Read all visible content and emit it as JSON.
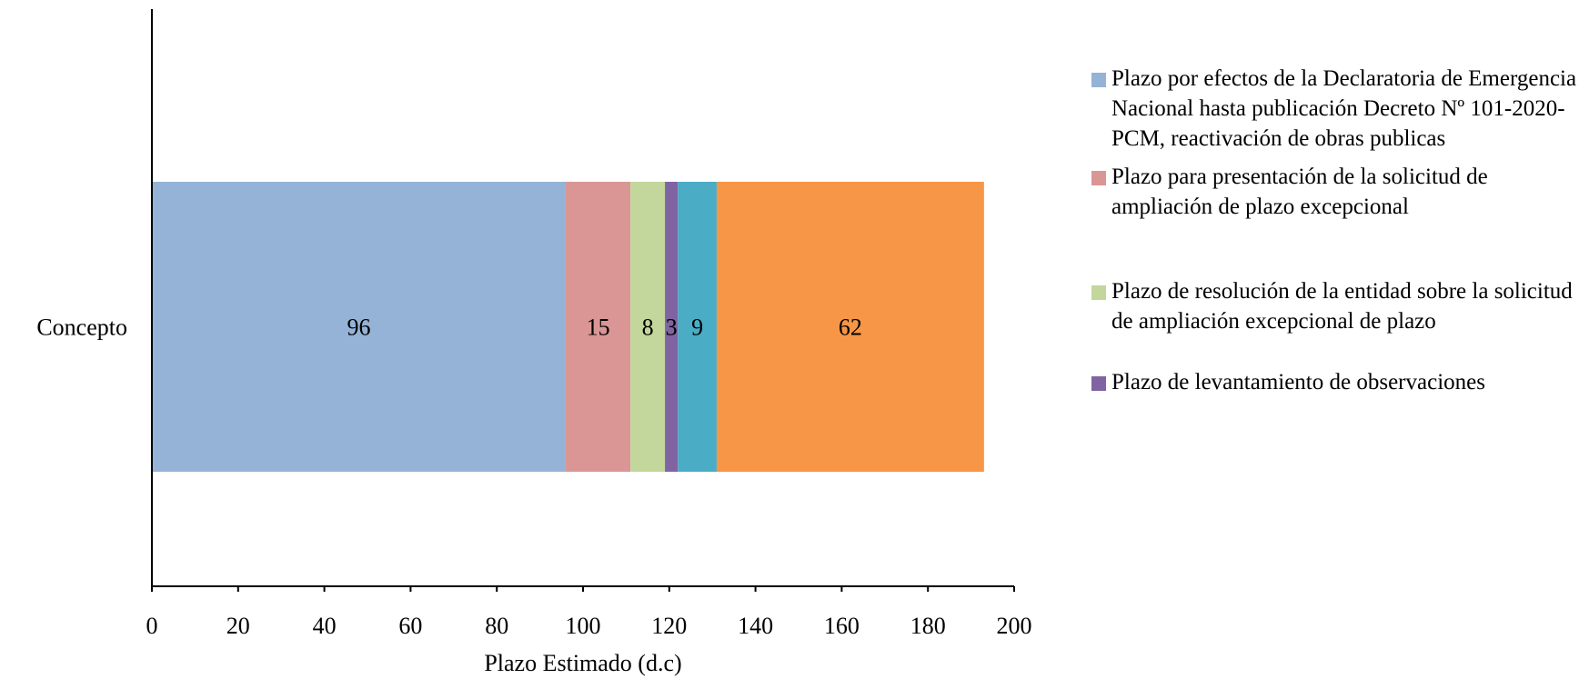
{
  "chart_data": {
    "type": "bar",
    "orientation": "horizontal",
    "stacked": true,
    "categories": [
      "Concepto"
    ],
    "series": [
      {
        "name": "Plazo por efectos de la Declaratoria de Emergencia Nacional hasta publicación Decreto Nº 101-2020-PCM, reactivación de obras publicas",
        "values": [
          96
        ],
        "color": "#95b3d7"
      },
      {
        "name": "Plazo para presentación de la solicitud de ampliación de plazo excepcional",
        "values": [
          15
        ],
        "color": "#d99694"
      },
      {
        "name": "Plazo de resolución de la entidad sobre la solicitud de ampliación excepcional de plazo",
        "values": [
          8
        ],
        "color": "#c3d69b"
      },
      {
        "name": "Plazo de levantamiento de observaciones",
        "values": [
          3
        ],
        "color": "#8064a2"
      },
      {
        "name": "",
        "values": [
          9
        ],
        "color": "#4bacc6"
      },
      {
        "name": "",
        "values": [
          62
        ],
        "color": "#f79646"
      }
    ],
    "xlabel": "Plazo Estimado (d.c)",
    "ylabel": "",
    "xlim": [
      0,
      200
    ],
    "xticks": [
      0,
      20,
      40,
      60,
      80,
      100,
      120,
      140,
      160,
      180,
      200
    ],
    "grid": false,
    "legend_position": "right"
  }
}
